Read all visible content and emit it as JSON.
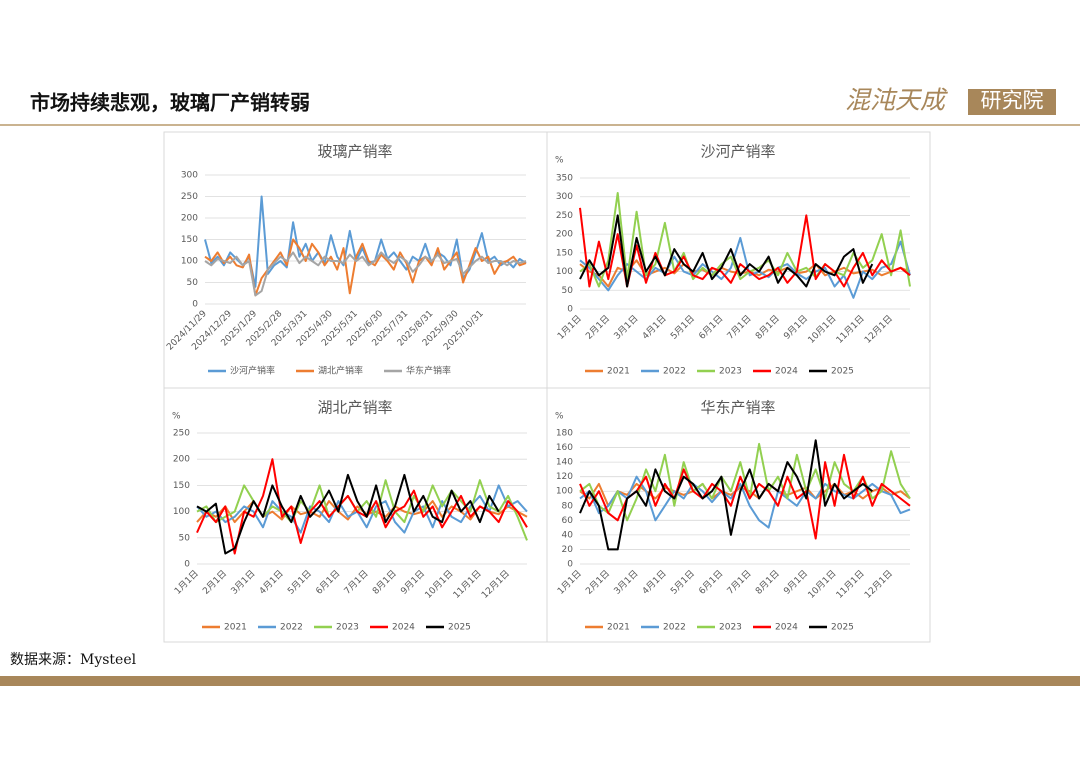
{
  "header": {
    "title": "市场持续悲观，玻璃厂产销转弱",
    "logo_main": "混沌天成",
    "logo_box": "研究院"
  },
  "source": "数据来源：Mysteel",
  "chart_data": [
    {
      "type": "line",
      "title": "玻璃产销率",
      "categories": [
        "2024/11/29",
        null,
        null,
        null,
        "2024/12/29",
        null,
        null,
        null,
        "2025/1/29",
        null,
        null,
        null,
        "2025/2/28",
        null,
        null,
        null,
        "2025/3/31",
        null,
        null,
        null,
        "2025/4/30",
        null,
        null,
        null,
        "2025/5/31",
        null,
        null,
        null,
        "2025/6/30",
        null,
        null,
        null,
        "2025/7/31",
        null,
        null,
        null,
        "2025/8/31",
        null,
        null,
        null,
        "2025/9/30",
        null,
        null,
        null,
        "2025/10/31",
        null,
        null,
        null,
        null,
        null,
        null,
        null
      ],
      "ylim": [
        0,
        300
      ],
      "yticks": [
        0,
        50,
        100,
        150,
        200,
        250,
        300
      ],
      "grid": true,
      "series": [
        {
          "name": "沙河产销率",
          "color": "#5b9bd5",
          "values": [
            150,
            95,
            110,
            90,
            120,
            105,
            90,
            110,
            40,
            250,
            70,
            90,
            100,
            85,
            190,
            110,
            140,
            100,
            120,
            95,
            160,
            110,
            90,
            170,
            100,
            130,
            95,
            100,
            150,
            105,
            120,
            100,
            80,
            110,
            100,
            140,
            95,
            120,
            110,
            90,
            150,
            60,
            80,
            120,
            165,
            100,
            110,
            90,
            100,
            85,
            105,
            95
          ]
        },
        {
          "name": "湖北产销率",
          "color": "#ed7d31",
          "values": [
            110,
            100,
            120,
            95,
            110,
            90,
            85,
            115,
            20,
            60,
            80,
            100,
            120,
            90,
            150,
            130,
            100,
            140,
            120,
            90,
            110,
            80,
            130,
            25,
            110,
            140,
            100,
            90,
            115,
            100,
            80,
            120,
            95,
            50,
            100,
            110,
            90,
            130,
            80,
            100,
            120,
            50,
            90,
            130,
            100,
            110,
            70,
            95,
            100,
            110,
            90,
            95
          ]
        },
        {
          "name": "华东产销率",
          "color": "#a5a5a5",
          "values": [
            100,
            90,
            105,
            100,
            95,
            110,
            90,
            100,
            20,
            30,
            80,
            95,
            110,
            100,
            120,
            95,
            110,
            100,
            90,
            110,
            100,
            100,
            95,
            115,
            100,
            110,
            90,
            100,
            120,
            105,
            95,
            110,
            100,
            75,
            90,
            110,
            100,
            115,
            95,
            100,
            105,
            70,
            85,
            100,
            110,
            95,
            100,
            100,
            90,
            100,
            95,
            100
          ]
        }
      ]
    },
    {
      "type": "line",
      "title": "沙河产销率",
      "y_unit": "%",
      "categories": [
        "1月1日",
        null,
        null,
        "2月1日",
        null,
        null,
        "3月1日",
        null,
        null,
        "4月1日",
        null,
        null,
        "5月1日",
        null,
        null,
        "6月1日",
        null,
        null,
        "7月1日",
        null,
        null,
        "8月1日",
        null,
        null,
        "9月1日",
        null,
        null,
        "10月1日",
        null,
        null,
        "11月1日",
        null,
        null,
        "12月1日",
        null,
        null
      ],
      "ylim": [
        0,
        350
      ],
      "yticks": [
        0,
        50,
        100,
        150,
        200,
        250,
        300,
        350
      ],
      "grid": true,
      "series": [
        {
          "name": "2021",
          "color": "#ed7d31",
          "values": [
            120,
            100,
            90,
            60,
            110,
            100,
            130,
            90,
            100,
            110,
            95,
            120,
            100,
            105,
            90,
            110,
            100,
            95,
            100,
            90,
            105,
            100,
            110,
            95,
            100,
            120,
            90,
            100,
            110,
            95,
            100,
            105,
            90,
            100,
            110,
            100
          ]
        },
        {
          "name": "2022",
          "color": "#5b9bd5",
          "values": [
            130,
            110,
            80,
            50,
            90,
            120,
            100,
            80,
            110,
            95,
            140,
            100,
            90,
            120,
            100,
            80,
            110,
            190,
            90,
            100,
            85,
            110,
            120,
            95,
            80,
            100,
            110,
            60,
            90,
            30,
            100,
            80,
            110,
            120,
            180,
            90
          ]
        },
        {
          "name": "2023",
          "color": "#92d050",
          "values": [
            100,
            120,
            60,
            130,
            310,
            80,
            260,
            90,
            120,
            230,
            100,
            150,
            80,
            110,
            90,
            120,
            140,
            80,
            100,
            110,
            130,
            90,
            150,
            100,
            110,
            85,
            120,
            100,
            90,
            150,
            110,
            130,
            200,
            90,
            210,
            60
          ]
        },
        {
          "name": "2024",
          "color": "#ff0000",
          "values": [
            270,
            60,
            180,
            80,
            200,
            60,
            170,
            70,
            150,
            90,
            100,
            140,
            90,
            80,
            110,
            100,
            70,
            120,
            100,
            80,
            90,
            110,
            70,
            100,
            250,
            80,
            120,
            100,
            60,
            110,
            150,
            90,
            130,
            100,
            110,
            90
          ]
        },
        {
          "name": "2025",
          "color": "#000000",
          "values": [
            80,
            130,
            90,
            110,
            250,
            60,
            190,
            100,
            140,
            90,
            160,
            120,
            100,
            150,
            80,
            110,
            160,
            90,
            120,
            100,
            140,
            70,
            110,
            90,
            60,
            120,
            100,
            90,
            140,
            160,
            70,
            120,
            null,
            null,
            null,
            null
          ]
        }
      ]
    },
    {
      "type": "line",
      "title": "湖北产销率",
      "y_unit": "%",
      "categories": [
        "1月1日",
        null,
        null,
        "2月1日",
        null,
        null,
        "3月1日",
        null,
        null,
        "4月1日",
        null,
        null,
        "5月1日",
        null,
        null,
        "6月1日",
        null,
        null,
        "7月1日",
        null,
        null,
        "8月1日",
        null,
        null,
        "9月1日",
        null,
        null,
        "10月1日",
        null,
        null,
        "11月1日",
        null,
        null,
        "12月1日",
        null,
        null
      ],
      "ylim": [
        0,
        250
      ],
      "yticks": [
        0,
        50,
        100,
        150,
        200,
        250
      ],
      "grid": true,
      "series": [
        {
          "name": "2021",
          "color": "#ed7d31",
          "values": [
            80,
            100,
            90,
            110,
            80,
            100,
            120,
            90,
            100,
            85,
            110,
            95,
            100,
            90,
            120,
            100,
            85,
            110,
            95,
            100,
            90,
            110,
            100,
            95,
            100,
            120,
            90,
            110,
            100,
            85,
            110,
            100,
            95,
            110,
            100,
            90
          ]
        },
        {
          "name": "2022",
          "color": "#5b9bd5",
          "values": [
            110,
            90,
            100,
            80,
            90,
            110,
            100,
            70,
            120,
            100,
            90,
            60,
            110,
            100,
            80,
            120,
            90,
            100,
            70,
            110,
            120,
            80,
            60,
            100,
            110,
            70,
            120,
            90,
            80,
            110,
            130,
            100,
            150,
            110,
            120,
            100
          ]
        },
        {
          "name": "2023",
          "color": "#92d050",
          "values": [
            100,
            110,
            80,
            90,
            100,
            150,
            120,
            90,
            110,
            100,
            80,
            120,
            100,
            150,
            90,
            110,
            130,
            100,
            120,
            90,
            160,
            100,
            80,
            130,
            100,
            150,
            110,
            140,
            120,
            100,
            160,
            110,
            100,
            130,
            90,
            45
          ]
        },
        {
          "name": "2024",
          "color": "#ff0000",
          "values": [
            60,
            100,
            80,
            110,
            20,
            100,
            90,
            130,
            200,
            90,
            110,
            40,
            100,
            120,
            90,
            110,
            130,
            100,
            90,
            120,
            70,
            100,
            110,
            140,
            90,
            110,
            70,
            100,
            130,
            90,
            110,
            100,
            80,
            120,
            100,
            70
          ]
        },
        {
          "name": "2025",
          "color": "#000000",
          "values": [
            110,
            100,
            115,
            20,
            30,
            80,
            120,
            90,
            150,
            110,
            80,
            130,
            90,
            110,
            140,
            100,
            170,
            120,
            90,
            150,
            80,
            110,
            170,
            100,
            130,
            90,
            80,
            140,
            100,
            120,
            80,
            130,
            100,
            null,
            null,
            null
          ]
        }
      ]
    },
    {
      "type": "line",
      "title": "华东产销率",
      "y_unit": "%",
      "categories": [
        "1月1日",
        null,
        null,
        "2月1日",
        null,
        null,
        "3月1日",
        null,
        null,
        "4月1日",
        null,
        null,
        "5月1日",
        null,
        null,
        "6月1日",
        null,
        null,
        "7月1日",
        null,
        null,
        "8月1日",
        null,
        null,
        "9月1日",
        null,
        null,
        "10月1日",
        null,
        null,
        "11月1日",
        null,
        null,
        "12月1日",
        null,
        null
      ],
      "ylim": [
        0,
        180
      ],
      "yticks": [
        0,
        20,
        40,
        60,
        80,
        100,
        120,
        140,
        160,
        180
      ],
      "grid": true,
      "series": [
        {
          "name": "2021",
          "color": "#ed7d31",
          "values": [
            100,
            90,
            110,
            80,
            100,
            95,
            110,
            100,
            90,
            105,
            100,
            95,
            100,
            110,
            90,
            100,
            95,
            105,
            100,
            90,
            110,
            100,
            95,
            100,
            105,
            90,
            100,
            110,
            95,
            100,
            90,
            100,
            105,
            95,
            100,
            90
          ]
        },
        {
          "name": "2022",
          "color": "#5b9bd5",
          "values": [
            90,
            100,
            70,
            80,
            100,
            90,
            120,
            100,
            60,
            80,
            100,
            90,
            110,
            100,
            85,
            100,
            90,
            110,
            80,
            60,
            50,
            100,
            90,
            80,
            100,
            90,
            110,
            100,
            95,
            90,
            100,
            110,
            100,
            95,
            70,
            75
          ]
        },
        {
          "name": "2023",
          "color": "#92d050",
          "values": [
            100,
            110,
            80,
            70,
            100,
            60,
            90,
            130,
            100,
            150,
            80,
            140,
            100,
            110,
            90,
            120,
            100,
            140,
            90,
            165,
            100,
            120,
            90,
            150,
            100,
            130,
            90,
            140,
            110,
            100,
            120,
            90,
            100,
            155,
            110,
            90
          ]
        },
        {
          "name": "2024",
          "color": "#ff0000",
          "values": [
            110,
            80,
            100,
            70,
            60,
            90,
            100,
            120,
            80,
            110,
            90,
            130,
            100,
            90,
            110,
            100,
            80,
            120,
            90,
            110,
            100,
            80,
            120,
            90,
            100,
            35,
            140,
            80,
            150,
            90,
            120,
            80,
            110,
            100,
            90,
            80
          ]
        },
        {
          "name": "2025",
          "color": "#000000",
          "values": [
            70,
            100,
            80,
            20,
            20,
            90,
            100,
            80,
            130,
            100,
            90,
            120,
            110,
            90,
            100,
            120,
            40,
            100,
            130,
            90,
            110,
            100,
            140,
            120,
            90,
            170,
            80,
            110,
            90,
            100,
            110,
            100,
            null,
            null,
            null,
            null
          ]
        }
      ]
    }
  ]
}
